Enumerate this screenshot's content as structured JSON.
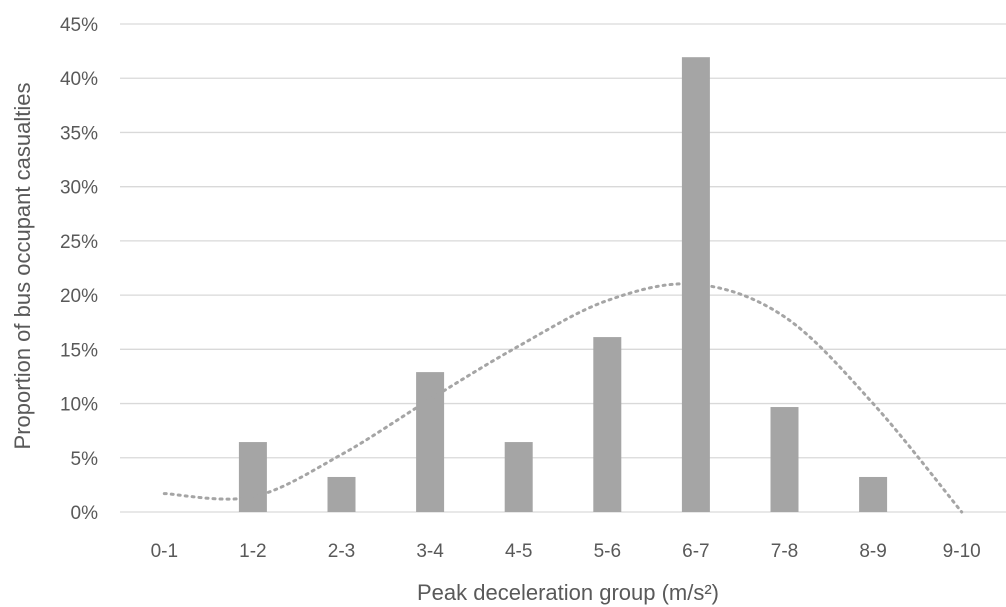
{
  "chart_data": {
    "type": "bar",
    "title": "",
    "xlabel": "Peak deceleration group (m/s²)",
    "ylabel": "Proportion of bus occupant casualties",
    "categories": [
      "0-1",
      "1-2",
      "2-3",
      "3-4",
      "4-5",
      "5-6",
      "6-7",
      "7-8",
      "8-9",
      "9-10"
    ],
    "values": [
      0,
      6.45,
      3.23,
      12.9,
      6.45,
      16.13,
      41.94,
      9.68,
      3.23,
      0
    ],
    "value_unit": "%",
    "ylim": [
      0,
      45
    ],
    "yticks": [
      0,
      5,
      10,
      15,
      20,
      25,
      30,
      35,
      40,
      45
    ],
    "ytick_labels": [
      "0%",
      "5%",
      "10%",
      "15%",
      "20%",
      "25%",
      "30%",
      "35%",
      "40%",
      "45%"
    ],
    "grid": true,
    "legend": "none",
    "bar_color": "#a5a5a5",
    "trendline": {
      "style": "dotted",
      "color": "#a5a5a5",
      "values": [
        1.7,
        1.4,
        5.3,
        10.4,
        15.3,
        19.5,
        21.0,
        18.0,
        10.0,
        0.0
      ]
    }
  }
}
